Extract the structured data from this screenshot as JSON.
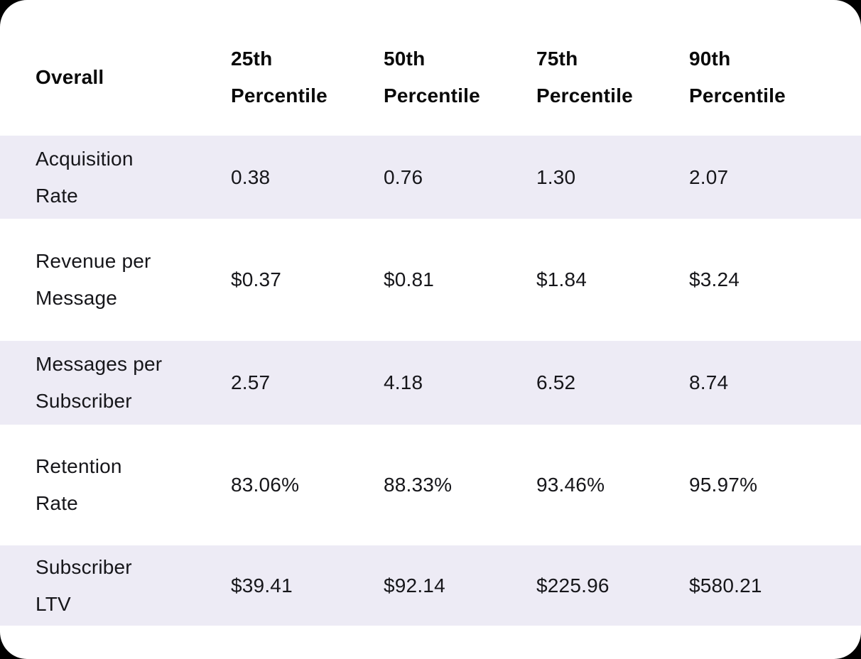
{
  "table": {
    "header": {
      "label_column": "Overall",
      "columns": [
        "25th Percentile",
        "50th Percentile",
        "75th Percentile",
        "90th Percentile"
      ]
    },
    "rows": [
      {
        "label": "Acquisition Rate",
        "values": [
          "0.38",
          "0.76",
          "1.30",
          "2.07"
        ]
      },
      {
        "label": "Revenue per Message",
        "values": [
          "$0.37",
          "$0.81",
          "$1.84",
          "$3.24"
        ]
      },
      {
        "label": "Messages per Subscriber",
        "values": [
          "2.57",
          "4.18",
          "6.52",
          "8.74"
        ]
      },
      {
        "label": "Retention Rate",
        "values": [
          "83.06%",
          "88.33%",
          "93.46%",
          "95.97%"
        ]
      },
      {
        "label": "Subscriber LTV",
        "values": [
          "$39.41",
          "$92.14",
          "$225.96",
          "$580.21"
        ]
      }
    ]
  },
  "colors": {
    "page_bg": "#000000",
    "card_bg": "#FFFFFF",
    "stripe": "#EDEBF5",
    "header_text": "#0A0A0A",
    "body_text": "#16161A"
  }
}
